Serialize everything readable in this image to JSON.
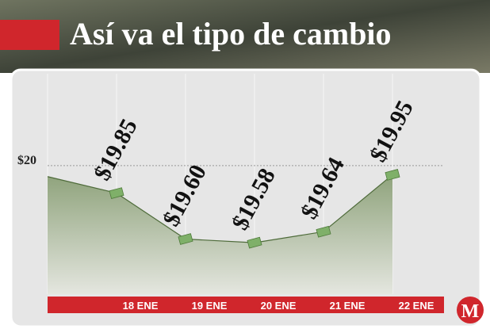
{
  "chart_data": {
    "type": "line",
    "title": "Así va el tipo de cambio",
    "brand": "M",
    "categories": [
      null,
      "18 ENE",
      "19 ENE",
      "20 ENE",
      "21 ENE",
      "22 ENE"
    ],
    "values": [
      19.94,
      19.85,
      19.6,
      19.58,
      19.64,
      19.95
    ],
    "value_labels": [
      null,
      "$19.85",
      "$19.60",
      "$19.58",
      "$19.64",
      "$19.95"
    ],
    "color": "#4e6b3a",
    "ylim": [
      19.3,
      20.5
    ],
    "yticks": [
      {
        "value": 20,
        "label": "$20"
      }
    ],
    "grid": true
  }
}
